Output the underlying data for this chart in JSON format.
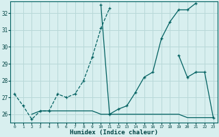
{
  "xlabel": "Humidex (Indice chaleur)",
  "bg_color": "#d8efef",
  "grid_color": "#b8d8d8",
  "line_color": "#006060",
  "xlim": [
    -0.5,
    23.5
  ],
  "ylim": [
    25.5,
    32.7
  ],
  "xticks": [
    0,
    1,
    2,
    3,
    4,
    5,
    6,
    7,
    8,
    9,
    10,
    11,
    12,
    13,
    14,
    15,
    16,
    17,
    18,
    19,
    20,
    21,
    22,
    23
  ],
  "yticks": [
    26,
    27,
    28,
    29,
    30,
    31,
    32
  ],
  "series": [
    {
      "x": [
        0,
        1,
        2,
        3,
        4,
        5,
        6,
        7,
        8,
        9,
        10,
        11
      ],
      "y": [
        27.2,
        26.5,
        25.7,
        26.2,
        26.2,
        27.2,
        27.0,
        27.2,
        28.0,
        29.4,
        31.1,
        32.3
      ],
      "style": "--",
      "marker": "+"
    },
    {
      "x": [
        10,
        11,
        12,
        13,
        14,
        15,
        16,
        17,
        18,
        19,
        20,
        21
      ],
      "y": [
        32.5,
        26.0,
        26.3,
        26.5,
        27.3,
        28.2,
        28.5,
        30.5,
        31.5,
        32.2,
        32.2,
        32.6
      ],
      "style": "-",
      "marker": "+"
    },
    {
      "x": [
        19,
        20,
        21,
        22,
        23
      ],
      "y": [
        29.5,
        28.2,
        28.5,
        28.5,
        25.8
      ],
      "style": "-",
      "marker": "+"
    },
    {
      "x": [
        2,
        3,
        4,
        5,
        6,
        7,
        8,
        9,
        10,
        11,
        12,
        13,
        14,
        15,
        16,
        17,
        18,
        19,
        20,
        21,
        22,
        23
      ],
      "y": [
        26.0,
        26.2,
        26.2,
        26.2,
        26.2,
        26.2,
        26.2,
        26.2,
        26.0,
        26.0,
        26.0,
        26.0,
        26.0,
        26.0,
        26.0,
        26.0,
        26.0,
        26.0,
        25.8,
        25.8,
        25.8,
        25.8
      ],
      "style": "-",
      "marker": null
    }
  ]
}
